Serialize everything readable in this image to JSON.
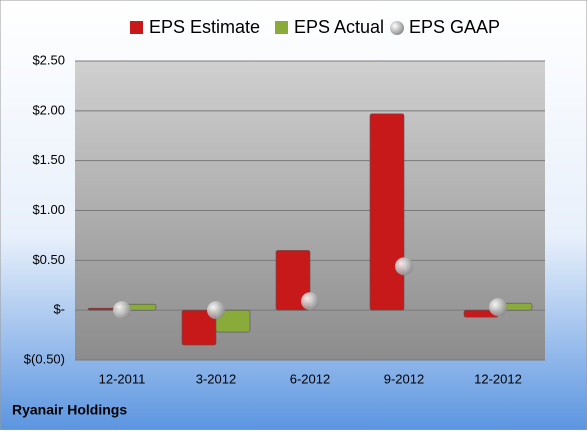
{
  "chart_data": {
    "type": "bar",
    "caption": "Ryanair Holdings",
    "categories": [
      "12-2011",
      "3-2012",
      "6-2012",
      "9-2012",
      "12-2012"
    ],
    "series": [
      {
        "name": "EPS Estimate",
        "color": "#c8191a",
        "kind": "bar",
        "values": [
          0.02,
          -0.35,
          0.6,
          1.97,
          -0.07
        ]
      },
      {
        "name": "EPS Actual",
        "color": "#8aaa3a",
        "kind": "bar",
        "values": [
          0.06,
          -0.22,
          null,
          null,
          0.07
        ]
      },
      {
        "name": "EPS GAAP",
        "color": "#a9a9a9",
        "kind": "dot",
        "values": [
          0.0,
          0.0,
          0.09,
          0.44,
          0.03
        ]
      }
    ],
    "ylim": [
      -0.5,
      2.5
    ],
    "yticks": [
      {
        "value": -0.5,
        "label": "$(0.50)"
      },
      {
        "value": 0,
        "label": "$-"
      },
      {
        "value": 0.5,
        "label": "$0.50"
      },
      {
        "value": 1,
        "label": "$1.00"
      },
      {
        "value": 1.5,
        "label": "$1.50"
      },
      {
        "value": 2,
        "label": "$2.00"
      },
      {
        "value": 2.5,
        "label": "$2.50"
      }
    ],
    "grid": true
  }
}
